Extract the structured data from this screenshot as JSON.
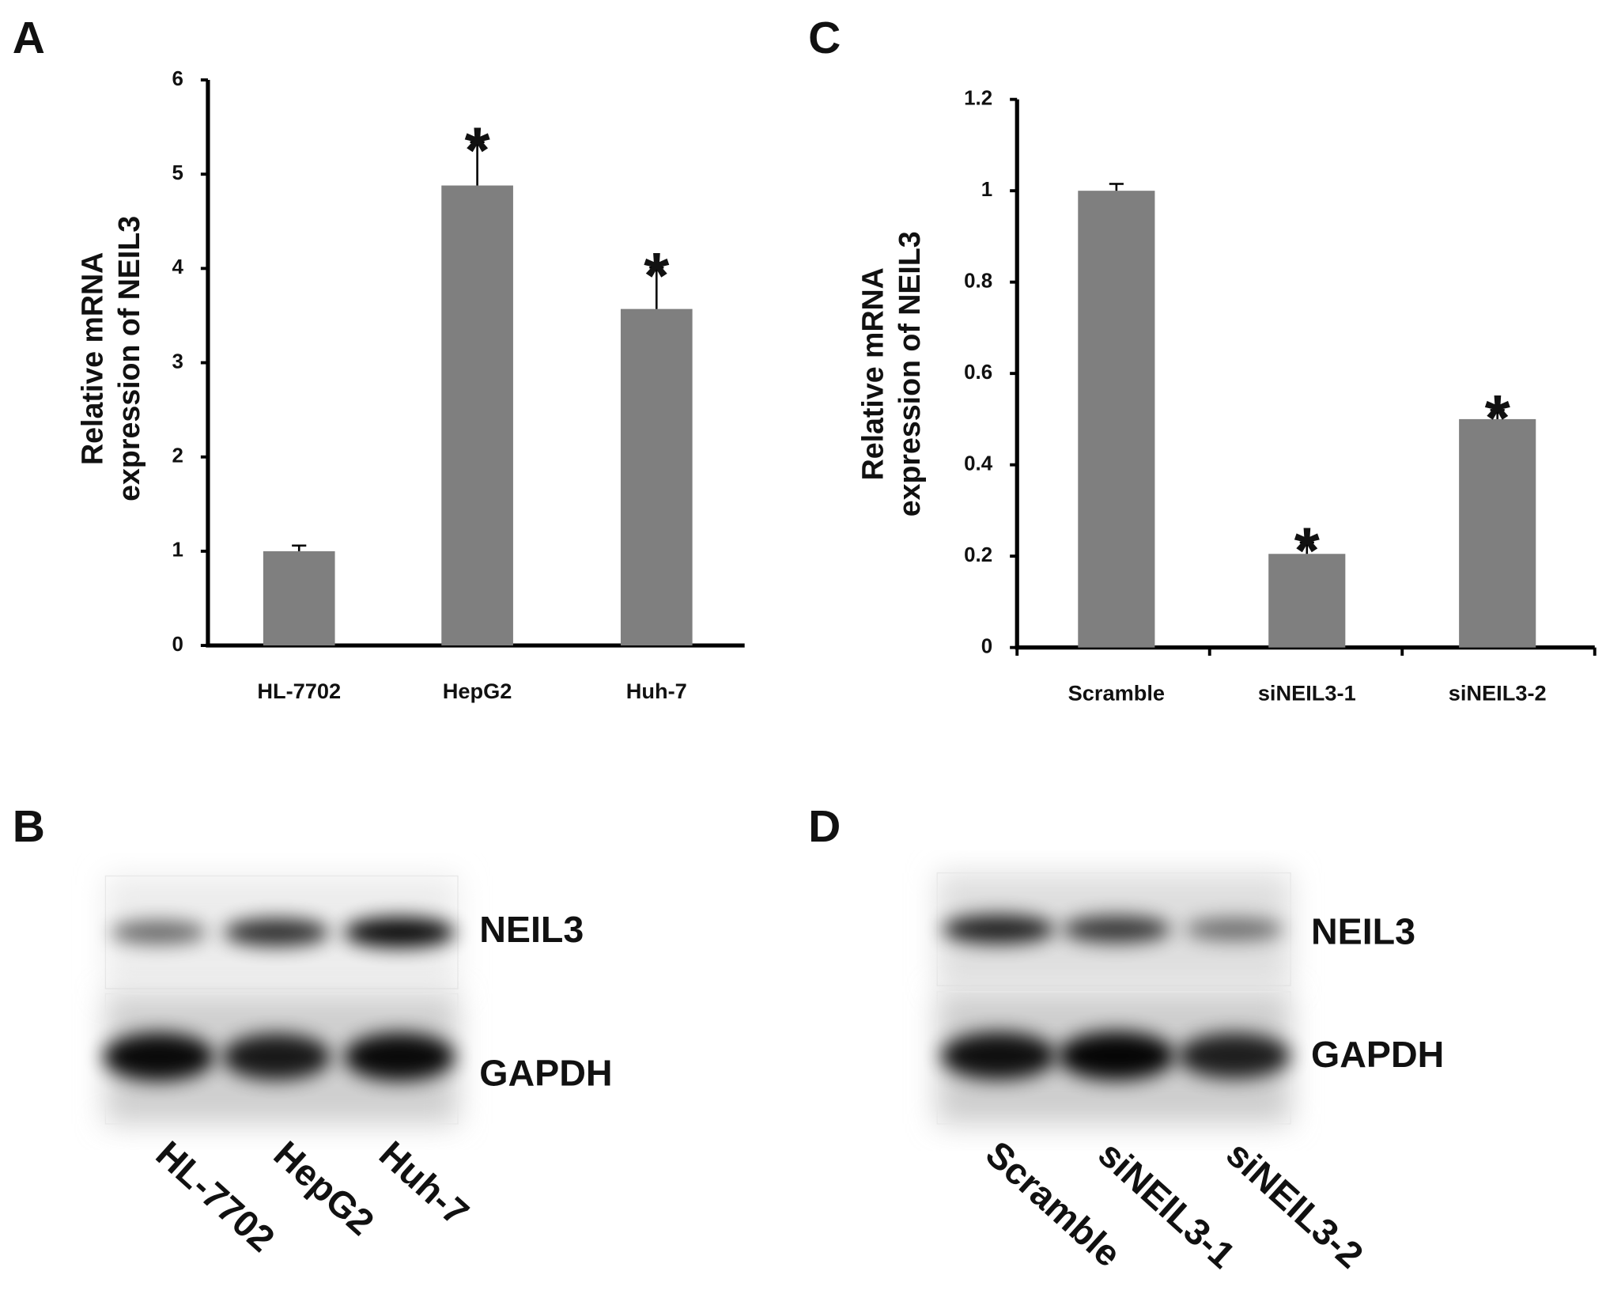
{
  "chart_data": [
    {
      "type": "bar",
      "panel": "A",
      "ylabel": [
        "Relative mRNA",
        "expression of NEIL3"
      ],
      "categories": [
        "HL-7702",
        "HepG2",
        "Huh-7"
      ],
      "values": [
        1,
        4.88,
        3.57
      ],
      "errors": [
        0.06,
        0.46,
        0.44
      ],
      "markers": [
        null,
        "*",
        "*"
      ],
      "color": "#7f7f7f",
      "ylim": [
        0,
        6
      ],
      "yticks": [
        0,
        1,
        2,
        3,
        4,
        5,
        6
      ],
      "grid": false
    },
    {
      "type": "bar",
      "panel": "C",
      "ylabel": [
        "Relative mRNA",
        "expression of NEIL3"
      ],
      "categories": [
        "Scramble",
        "siNEIL3-1",
        "siNEIL3-2"
      ],
      "values": [
        1,
        0.205,
        0.5
      ],
      "errors": [
        0.015,
        0.025,
        0.02
      ],
      "markers": [
        null,
        "*",
        "*"
      ],
      "color": "#7f7f7f",
      "ylim": [
        0,
        1.2
      ],
      "yticks": [
        0,
        0.2,
        0.4,
        0.6,
        0.8,
        1,
        1.2
      ],
      "grid": false
    }
  ],
  "blots": [
    {
      "panel": "B",
      "bands": [
        "NEIL3",
        "GAPDH"
      ],
      "lanes": [
        "HL-7702",
        "HepG2",
        "Huh-7"
      ]
    },
    {
      "panel": "D",
      "bands": [
        "NEIL3",
        "GAPDH"
      ],
      "lanes": [
        "Scramble",
        "siNEIL3-1",
        "siNEIL3-2"
      ]
    }
  ]
}
